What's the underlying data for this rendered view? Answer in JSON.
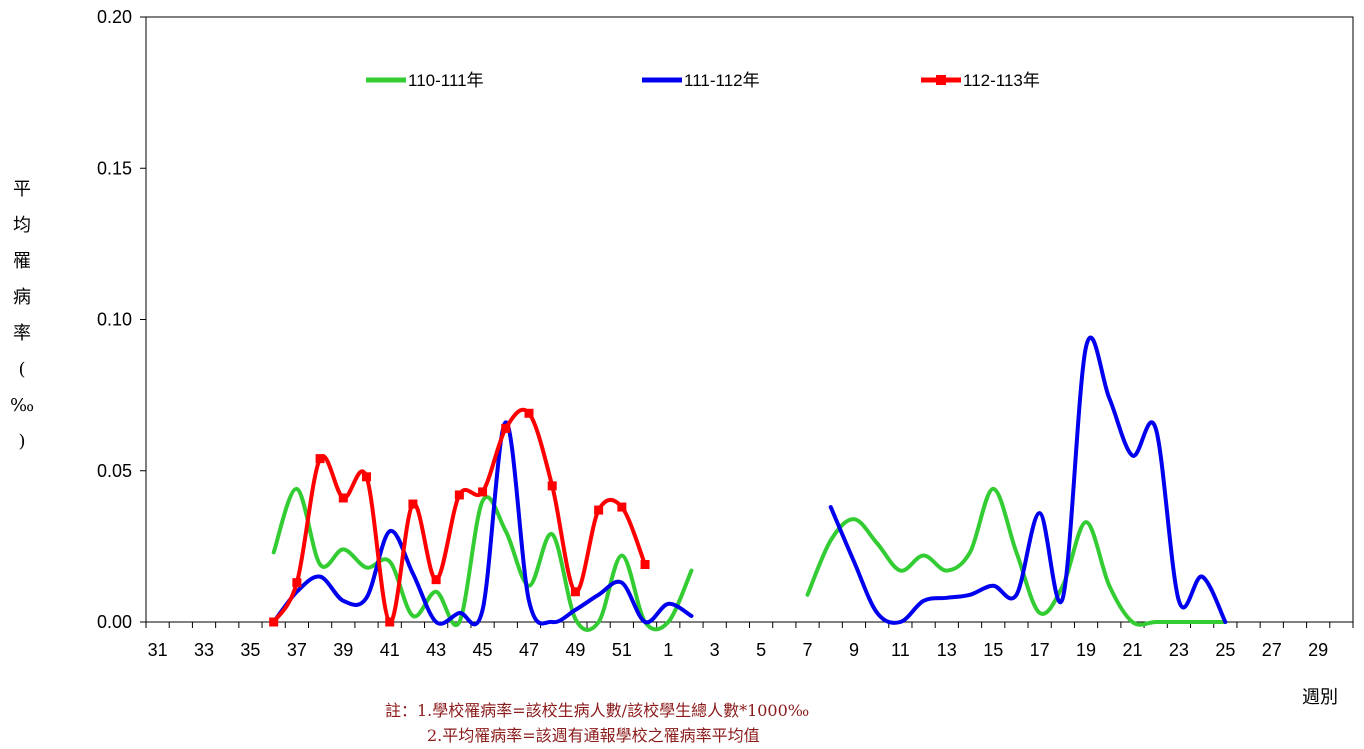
{
  "chart_data": {
    "type": "line",
    "ylabel_chars": [
      "平",
      "均",
      "罹",
      "病",
      "率",
      "(",
      "‰",
      ")"
    ],
    "xlabel": "週別",
    "ylim": [
      0,
      0.2
    ],
    "y_ticks": [
      "0.00",
      "0.05",
      "0.10",
      "0.15",
      "0.20"
    ],
    "x_weeks": [
      31,
      32,
      33,
      34,
      35,
      36,
      37,
      38,
      39,
      40,
      41,
      42,
      43,
      44,
      45,
      46,
      47,
      48,
      49,
      50,
      51,
      52,
      1,
      2,
      3,
      4,
      5,
      6,
      7,
      8,
      9,
      10,
      11,
      12,
      13,
      14,
      15,
      16,
      17,
      18,
      19,
      20,
      21,
      22,
      23,
      24,
      25,
      26,
      27,
      28,
      29,
      30
    ],
    "x_tick_labels": [
      "31",
      "33",
      "35",
      "37",
      "39",
      "41",
      "43",
      "45",
      "47",
      "49",
      "51",
      "1",
      "3",
      "5",
      "7",
      "9",
      "11",
      "13",
      "15",
      "17",
      "19",
      "21",
      "23",
      "25",
      "27",
      "29"
    ],
    "legend_position": "top",
    "series": [
      {
        "name": "110-111年",
        "color": "#33cc33",
        "marker": "none",
        "values": [
          null,
          null,
          null,
          null,
          null,
          0.023,
          0.044,
          0.019,
          0.024,
          0.018,
          0.02,
          0.002,
          0.01,
          0.0,
          0.04,
          0.03,
          0.012,
          0.029,
          0.001,
          0.0,
          0.022,
          0.0,
          0.0,
          0.017,
          null,
          null,
          null,
          null,
          0.009,
          0.027,
          0.034,
          0.026,
          0.017,
          0.022,
          0.017,
          0.023,
          0.044,
          0.023,
          0.003,
          0.012,
          0.033,
          0.012,
          0.0,
          0.0,
          0.0,
          0.0,
          0.0,
          null,
          null,
          null,
          null,
          null
        ]
      },
      {
        "name": "111-112年",
        "color": "#0000ee",
        "marker": "none",
        "values": [
          null,
          null,
          null,
          null,
          null,
          0.0,
          0.01,
          0.015,
          0.007,
          0.008,
          0.03,
          0.016,
          0.0,
          0.003,
          0.004,
          0.066,
          0.007,
          0.0,
          0.004,
          0.009,
          0.013,
          0.0,
          0.006,
          0.002,
          null,
          null,
          null,
          null,
          null,
          0.038,
          0.02,
          0.003,
          0.0,
          0.007,
          0.008,
          0.009,
          0.012,
          0.009,
          0.036,
          0.008,
          0.091,
          0.074,
          0.055,
          0.064,
          0.007,
          0.015,
          0.0,
          null,
          null,
          null,
          null,
          null
        ]
      },
      {
        "name": "112-113年",
        "color": "#ff0000",
        "marker": "square",
        "values": [
          null,
          null,
          null,
          null,
          null,
          0.0,
          0.013,
          0.054,
          0.041,
          0.048,
          0.0,
          0.039,
          0.014,
          0.042,
          0.043,
          0.064,
          0.069,
          0.045,
          0.01,
          0.037,
          0.038,
          0.019,
          null,
          null,
          null,
          null,
          null,
          null,
          null,
          null,
          null,
          null,
          null,
          null,
          null,
          null,
          null,
          null,
          null,
          null,
          null,
          null,
          null,
          null,
          null,
          null,
          null,
          null,
          null,
          null,
          null,
          null
        ]
      }
    ]
  },
  "notes": {
    "line1": "註：1.學校罹病率=該校生病人數/該校學生總人數*1000‰",
    "line2": "2.平均罹病率=該週有通報學校之罹病率平均值"
  }
}
